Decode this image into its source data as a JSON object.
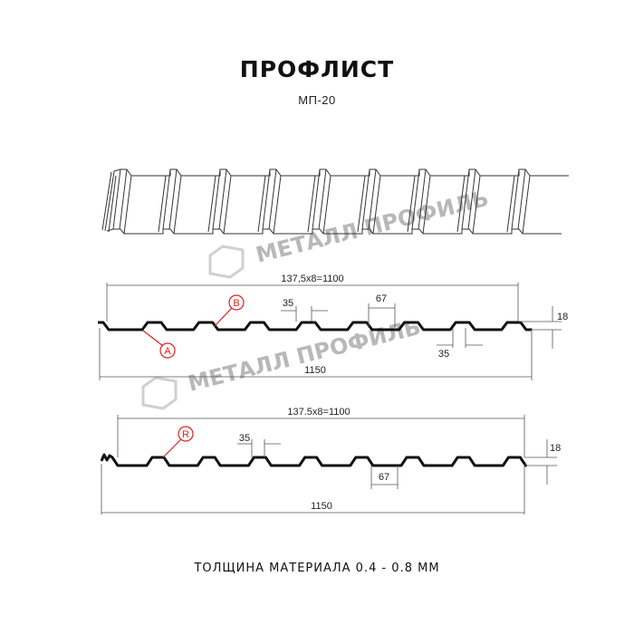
{
  "header": {
    "title": "ПРОФЛИСТ",
    "subtitle": "МП-20"
  },
  "watermark": "МЕТАЛЛ ПРОФИЛЬ",
  "profile_a": {
    "top_dim": "137,5x8=1100",
    "overall_dim": "1150",
    "ridge_dim": "35",
    "valley_dim": "67",
    "bottom_ridge_dim": "35",
    "height_dim": "18",
    "markers": [
      "B",
      "A"
    ]
  },
  "profile_r": {
    "top_dim": "137.5x8=1100",
    "overall_dim": "1150",
    "ridge_dim": "35",
    "valley_dim": "67",
    "height_dim": "18",
    "markers": [
      "R"
    ]
  },
  "footer": {
    "thickness": "ТОЛЩИНА МАТЕРИАЛА 0.4 - 0.8 ММ"
  },
  "colors": {
    "marker": "#e02020",
    "line": "#111111",
    "dimension": "#444444"
  }
}
